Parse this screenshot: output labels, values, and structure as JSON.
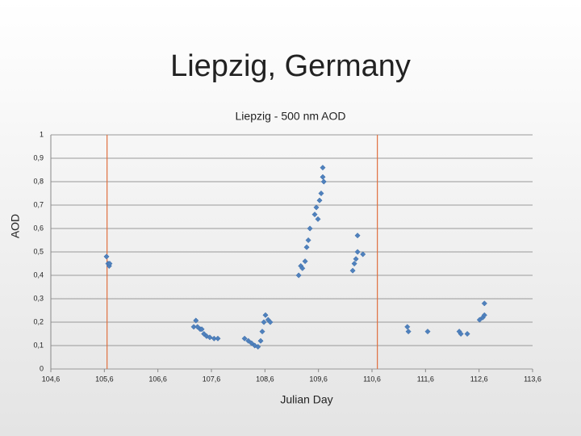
{
  "slide_title": "Liepzig, Germany",
  "chart_data": {
    "type": "scatter",
    "title": "Liepzig - 500 nm AOD",
    "xlabel": "Julian Day",
    "ylabel": "AOD",
    "series": [
      {
        "name": "AOD",
        "color": "#4f81bd",
        "x": [
          105.64,
          105.67,
          105.69,
          105.7,
          107.27,
          107.31,
          107.34,
          107.39,
          107.42,
          107.46,
          107.51,
          107.57,
          107.65,
          107.72,
          108.22,
          108.29,
          108.35,
          108.41,
          108.47,
          108.52,
          108.55,
          108.58,
          108.61,
          108.66,
          108.7,
          109.23,
          109.27,
          109.3,
          109.35,
          109.38,
          109.41,
          109.44,
          109.53,
          109.56,
          109.59,
          109.62,
          109.65,
          109.68,
          109.68,
          109.7,
          110.24,
          110.27,
          110.3,
          110.33,
          110.33,
          110.43,
          111.26,
          111.28,
          111.64,
          112.23,
          112.26,
          112.38,
          112.61,
          112.67,
          112.7,
          112.7
        ],
        "values": [
          0.48,
          0.45,
          0.44,
          0.45,
          0.18,
          0.207,
          0.18,
          0.17,
          0.17,
          0.15,
          0.14,
          0.135,
          0.13,
          0.13,
          0.13,
          0.12,
          0.11,
          0.1,
          0.095,
          0.12,
          0.16,
          0.2,
          0.23,
          0.21,
          0.2,
          0.4,
          0.44,
          0.43,
          0.46,
          0.52,
          0.55,
          0.6,
          0.66,
          0.69,
          0.64,
          0.72,
          0.75,
          0.82,
          0.86,
          0.8,
          0.42,
          0.45,
          0.47,
          0.57,
          0.5,
          0.49,
          0.18,
          0.16,
          0.16,
          0.16,
          0.15,
          0.15,
          0.21,
          0.22,
          0.23,
          0.28
        ]
      }
    ],
    "vlines": [
      105.65,
      110.7
    ],
    "vline_color": "#e07040",
    "xlim": [
      104.6,
      113.6
    ],
    "xticks": [
      {
        "value": 104.6,
        "label": "104,6"
      },
      {
        "value": 105.6,
        "label": "105,6"
      },
      {
        "value": 106.6,
        "label": "106,6"
      },
      {
        "value": 107.6,
        "label": "107,6"
      },
      {
        "value": 108.6,
        "label": "108,6"
      },
      {
        "value": 109.6,
        "label": "109,6"
      },
      {
        "value": 110.6,
        "label": "110,6"
      },
      {
        "value": 111.6,
        "label": "111,6"
      },
      {
        "value": 112.6,
        "label": "112,6"
      },
      {
        "value": 113.6,
        "label": "113,6"
      }
    ],
    "ylim": [
      0,
      1
    ],
    "yticks": [
      0,
      {
        "value": 0.1,
        "label": "0,1"
      },
      {
        "value": 0.2,
        "label": "0,2"
      },
      {
        "value": 0.3,
        "label": "0,3"
      },
      {
        "value": 0.4,
        "label": "0,4"
      },
      {
        "value": 0.5,
        "label": "0,5"
      },
      {
        "value": 0.6,
        "label": "0,6"
      },
      {
        "value": 0.7,
        "label": "0,7"
      },
      {
        "value": 0.8,
        "label": "0,8"
      },
      {
        "value": 0.9,
        "label": "0,9"
      },
      1
    ],
    "grid": true
  }
}
